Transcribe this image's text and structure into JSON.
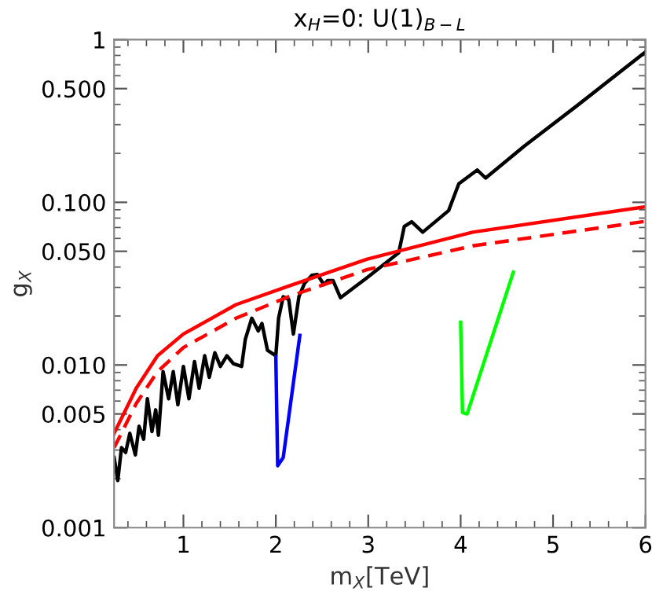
{
  "chart_data": {
    "type": "line",
    "title": "x$_{H}$=0: U(1)$_{B−L}$",
    "xlabel": "m$_{X}$[TeV]",
    "ylabel": "g$_{X}$",
    "log": "y",
    "grid": false,
    "marker": "none",
    "xlim": [
      0.25,
      6
    ],
    "xticks": [
      1,
      2,
      3,
      4,
      5,
      6
    ],
    "ylim": [
      0.001,
      1
    ],
    "yticks": [
      {
        "value": 0.001,
        "label": "0.001"
      },
      {
        "value": 0.005,
        "label": "0.005"
      },
      {
        "value": 0.01,
        "label": "0.010"
      },
      {
        "value": 0.05,
        "label": "0.050"
      },
      {
        "value": 0.1,
        "label": "0.100"
      },
      {
        "value": 0.5,
        "label": "0.500"
      },
      1
    ],
    "series": [
      {
        "color": "#000000",
        "line_style": "solid",
        "x": [
          0.25,
          0.29,
          0.33,
          0.375,
          0.42,
          0.48,
          0.52,
          0.57,
          0.61,
          0.66,
          0.7,
          0.73,
          0.78,
          0.84,
          0.89,
          0.94,
          1.0,
          1.06,
          1.12,
          1.17,
          1.23,
          1.28,
          1.34,
          1.4,
          1.47,
          1.54,
          1.63,
          1.67,
          1.74,
          1.81,
          1.85,
          1.91,
          2.0,
          2.03,
          2.08,
          2.14,
          2.19,
          2.25,
          2.31,
          2.39,
          2.45,
          2.52,
          2.56,
          2.62,
          2.7,
          2.99,
          3.33,
          3.39,
          3.47,
          3.59,
          3.87,
          3.98,
          4.18,
          4.27,
          4.69,
          5.26,
          6.0
        ],
        "values": [
          0.0027,
          0.00195,
          0.0031,
          0.0029,
          0.0038,
          0.0028,
          0.0042,
          0.0035,
          0.0062,
          0.0039,
          0.0053,
          0.0037,
          0.0091,
          0.0062,
          0.0091,
          0.0057,
          0.0098,
          0.0062,
          0.0105,
          0.0072,
          0.0114,
          0.0084,
          0.0119,
          0.0098,
          0.0114,
          0.0102,
          0.0098,
          0.0144,
          0.0194,
          0.0162,
          0.018,
          0.0123,
          0.0114,
          0.0194,
          0.0263,
          0.0253,
          0.0155,
          0.0263,
          0.0317,
          0.0356,
          0.036,
          0.0312,
          0.033,
          0.033,
          0.0259,
          0.0345,
          0.049,
          0.071,
          0.076,
          0.0655,
          0.089,
          0.13,
          0.158,
          0.141,
          0.222,
          0.393,
          0.84
        ]
      },
      {
        "color": "#ff0000",
        "line_style": "solid",
        "x": [
          0.25,
          0.49,
          0.72,
          1.0,
          1.57,
          2.14,
          2.99,
          4.13,
          6.0
        ],
        "values": [
          0.0038,
          0.0072,
          0.0114,
          0.0155,
          0.0235,
          0.0306,
          0.0448,
          0.0655,
          0.094
        ]
      },
      {
        "color": "#ff0000",
        "line_style": "dashed",
        "x": [
          0.25,
          0.49,
          0.72,
          1.0,
          1.57,
          2.14,
          2.99,
          4.13,
          6.0
        ],
        "values": [
          0.0031,
          0.0058,
          0.0091,
          0.0128,
          0.0194,
          0.0263,
          0.0386,
          0.054,
          0.0764
        ]
      },
      {
        "color": "#0000ff",
        "line_style": "solid",
        "x": [
          2.0,
          2.02,
          2.08,
          2.26
        ],
        "values": [
          0.0112,
          0.0024,
          0.0027,
          0.0152
        ]
      },
      {
        "color": "#00ff00",
        "line_style": "solid",
        "x": [
          4.0,
          4.02,
          4.07,
          4.57
        ],
        "values": [
          0.0183,
          0.0051,
          0.005,
          0.0372
        ]
      }
    ]
  }
}
